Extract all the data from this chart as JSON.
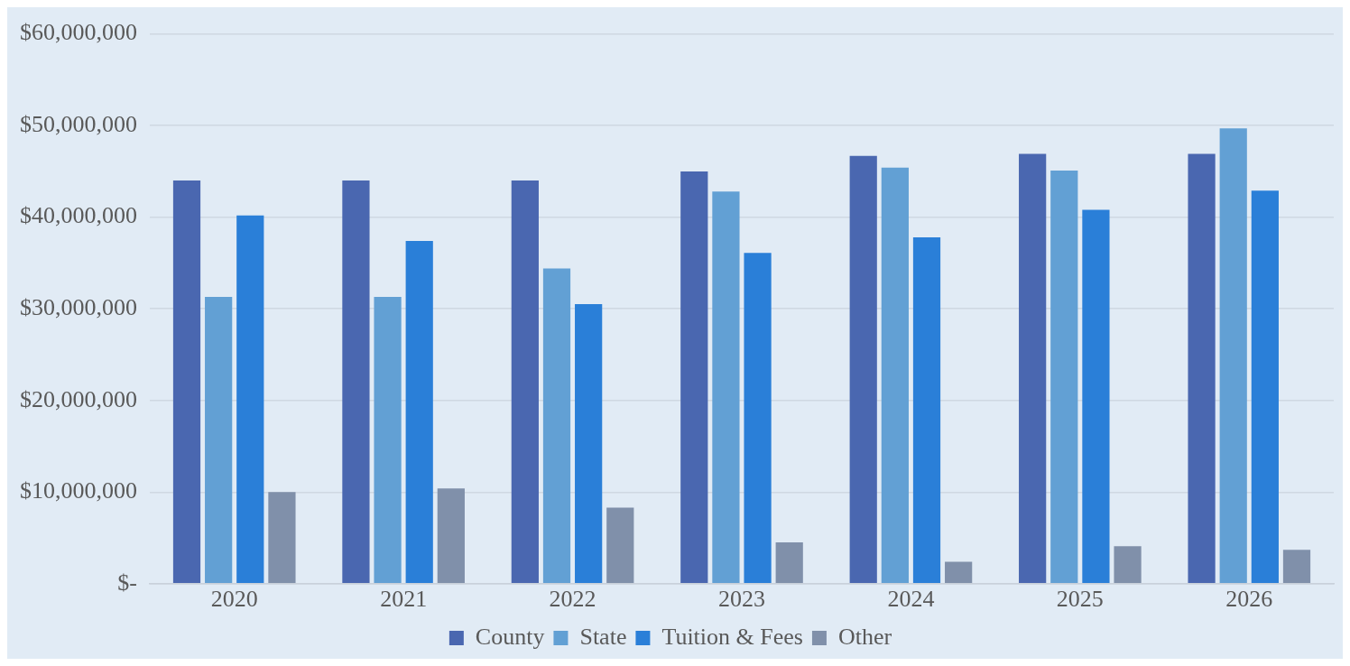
{
  "chart_data": {
    "type": "bar",
    "categories": [
      "2020",
      "2021",
      "2022",
      "2023",
      "2024",
      "2025",
      "2026"
    ],
    "series": [
      {
        "name": "County",
        "color": "#4a67b0",
        "values": [
          44000000,
          44000000,
          44000000,
          45000000,
          46700000,
          46900000,
          46900000
        ]
      },
      {
        "name": "State",
        "color": "#62a0d4",
        "values": [
          31300000,
          31300000,
          34400000,
          42800000,
          45400000,
          45100000,
          49700000
        ]
      },
      {
        "name": "Tuition & Fees",
        "color": "#2a7fd8",
        "values": [
          40200000,
          37400000,
          30500000,
          36100000,
          37800000,
          40800000,
          42900000
        ]
      },
      {
        "name": "Other",
        "color": "#8090aa",
        "values": [
          10000000,
          10400000,
          8300000,
          4500000,
          2400000,
          4100000,
          3700000
        ]
      }
    ],
    "ylim": [
      0,
      60000000
    ],
    "yticks": [
      {
        "value": 0,
        "label": "$-"
      },
      {
        "value": 10000000,
        "label": "$10,000,000"
      },
      {
        "value": 20000000,
        "label": "$20,000,000"
      },
      {
        "value": 30000000,
        "label": "$30,000,000"
      },
      {
        "value": 40000000,
        "label": "$40,000,000"
      },
      {
        "value": 50000000,
        "label": "$50,000,000"
      },
      {
        "value": 60000000,
        "label": "$60,000,000"
      }
    ],
    "grid": "y",
    "legend": "bottom"
  }
}
